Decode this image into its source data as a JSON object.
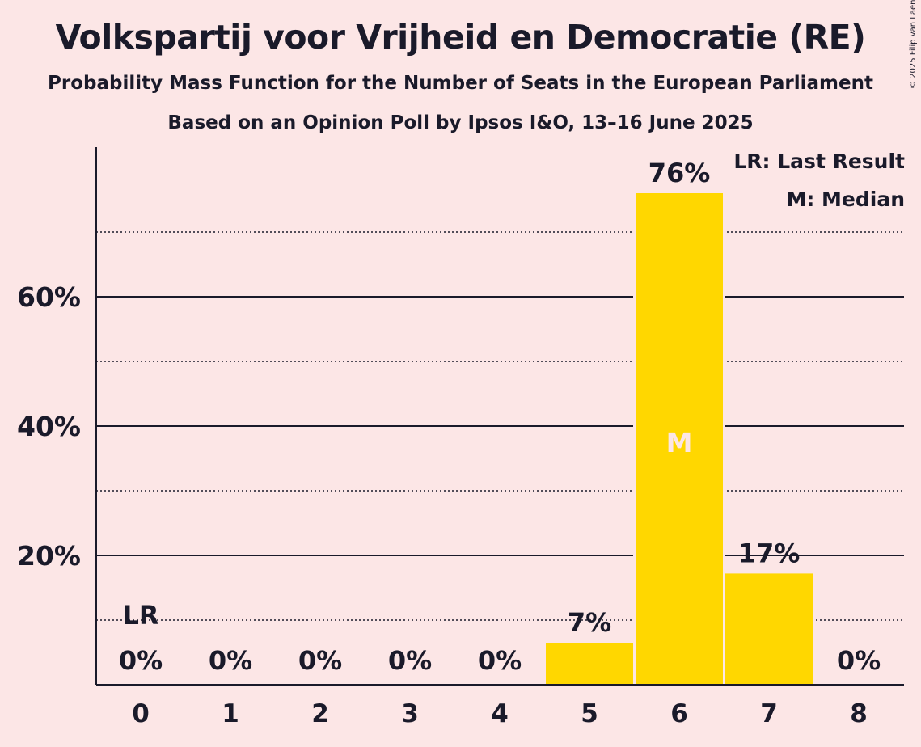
{
  "title": "Volkspartij voor Vrijheid en Democratie (RE)",
  "subtitle": "Probability Mass Function for the Number of Seats in the European Parliament",
  "source": "Based on an Opinion Poll by Ipsos I&O, 13–16 June 2025",
  "copyright": "© 2025 Filip van Laenen",
  "legend": {
    "last_result": "LR: Last Result",
    "median": "M: Median"
  },
  "colors": {
    "background": "#fce6e6",
    "bar": "#ffd700",
    "text": "#1a1a2a"
  },
  "chart_data": {
    "type": "bar",
    "categories": [
      "0",
      "1",
      "2",
      "3",
      "4",
      "5",
      "6",
      "7",
      "8"
    ],
    "values": [
      0,
      0,
      0,
      0,
      0,
      6.5,
      76,
      17.2,
      0
    ],
    "value_labels": [
      "0%",
      "0%",
      "0%",
      "0%",
      "0%",
      "7%",
      "76%",
      "17%",
      "0%"
    ],
    "ylim": [
      0,
      80
    ],
    "yticks": [
      20,
      40,
      60
    ],
    "ytick_labels": [
      "20%",
      "40%",
      "60%"
    ],
    "minor_gridlines": [
      10,
      30,
      50,
      70
    ],
    "last_result_category": "0",
    "last_result_marker": "LR",
    "median_category": "6",
    "median_marker": "M",
    "legend_position": "top-right"
  }
}
